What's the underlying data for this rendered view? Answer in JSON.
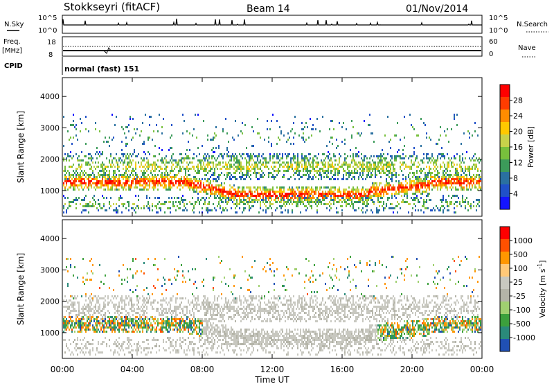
{
  "header": {
    "station": "Stokkseyri (fitACF)",
    "beam": "Beam 14",
    "date": "01/Nov/2014"
  },
  "left_labels": {
    "nsky": "N.Sky",
    "freq": "Freq.",
    "mhz": "[MHz]",
    "cpid": "CPID"
  },
  "right_labels": {
    "nsearch": "N.Search",
    "nave": "Nave"
  },
  "strip_ticks": {
    "noise_top": "10^5",
    "noise_bottom": "10^0",
    "freq_top": "18",
    "freq_bottom": "8",
    "nave_top": "60",
    "nave_bottom": "0"
  },
  "cpid_text": "normal (fast) 151",
  "colors": {
    "power": [
      "#1414ff",
      "#2050c8",
      "#2a70a0",
      "#3c9b5a",
      "#78c03c",
      "#c8d24a",
      "#ffc800",
      "#ff8c00",
      "#ff3c00",
      "#ff0000"
    ],
    "velocity": [
      "#ff0000",
      "#ff5000",
      "#ff9600",
      "#ffc878",
      "#c8c8c0",
      "#b4b4a8",
      "#a0d070",
      "#3ca03c",
      "#2a8a7a",
      "#2050b4"
    ]
  },
  "chart_data": [
    {
      "type": "heatmap",
      "name": "power",
      "ylabel": "Slant Range [km]",
      "xlim": [
        0,
        24
      ],
      "ylim": [
        180,
        4600
      ],
      "yticks": [
        "1000",
        "2000",
        "3000",
        "4000"
      ],
      "colorbar_label": "Power [dB]",
      "colorbar_ticks": [
        "4",
        "8",
        "12",
        "16",
        "20",
        "24",
        "28"
      ],
      "colorbar_range": [
        0,
        32
      ]
    },
    {
      "type": "heatmap",
      "name": "velocity",
      "ylabel": "Slant Range [km]",
      "xlabel": "Time UT",
      "xlim": [
        0,
        24
      ],
      "ylim": [
        180,
        4600
      ],
      "xticks": [
        "00:00",
        "04:00",
        "08:00",
        "12:00",
        "16:00",
        "20:00",
        "00:00"
      ],
      "yticks": [
        "1000",
        "2000",
        "3000",
        "4000"
      ],
      "colorbar_label": "Velocity [m s^-1]",
      "colorbar_ticks": [
        "1000",
        "500",
        "100",
        "25",
        "-25",
        "-100",
        "-500",
        "-1000"
      ]
    }
  ]
}
